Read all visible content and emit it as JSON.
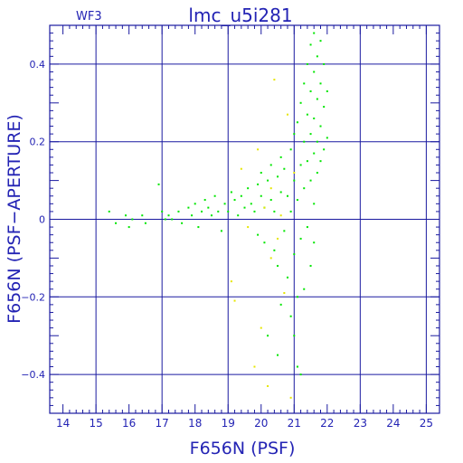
{
  "chart_data": {
    "type": "scatter",
    "title": "lmc_u5i281",
    "corner_label": "WF3",
    "xlabel": "F656N (PSF)",
    "ylabel": "F656N (PSF−APERTURE)",
    "xlim": [
      13.6,
      25.4
    ],
    "ylim": [
      -0.5,
      0.5
    ],
    "x_ticks": [
      14,
      15,
      16,
      17,
      18,
      19,
      20,
      21,
      22,
      23,
      24,
      25
    ],
    "y_ticks": [
      -0.4,
      -0.2,
      0,
      0.2,
      0.4
    ],
    "x_tick_labels": [
      "14",
      "15",
      "16",
      "17",
      "18",
      "19",
      "20",
      "21",
      "22",
      "23",
      "24",
      "25"
    ],
    "y_tick_labels": [
      "−0.4",
      "−0.2",
      "0",
      "0.2",
      "0.4"
    ],
    "grid": true,
    "colors": {
      "frame": "#1a1aa0",
      "text": "#2323b4",
      "series_green": "#00e600",
      "series_yellow": "#e6e600"
    },
    "series": [
      {
        "color": "#00e600",
        "points": [
          [
            15.4,
            0.02
          ],
          [
            15.6,
            -0.01
          ],
          [
            15.9,
            0.01
          ],
          [
            16.0,
            -0.02
          ],
          [
            16.1,
            0.0
          ],
          [
            16.4,
            0.01
          ],
          [
            16.5,
            -0.01
          ],
          [
            16.9,
            0.09
          ],
          [
            17.0,
            0.02
          ],
          [
            17.1,
            0.0
          ],
          [
            17.2,
            0.01
          ],
          [
            17.3,
            0.0
          ],
          [
            17.5,
            0.02
          ],
          [
            17.6,
            -0.01
          ],
          [
            17.8,
            0.03
          ],
          [
            17.9,
            0.01
          ],
          [
            18.0,
            0.04
          ],
          [
            18.1,
            -0.02
          ],
          [
            18.2,
            0.02
          ],
          [
            18.3,
            0.05
          ],
          [
            18.4,
            0.03
          ],
          [
            18.5,
            0.01
          ],
          [
            18.6,
            0.06
          ],
          [
            18.7,
            0.02
          ],
          [
            18.8,
            -0.03
          ],
          [
            18.9,
            0.04
          ],
          [
            19.0,
            0.02
          ],
          [
            19.1,
            0.07
          ],
          [
            19.2,
            0.05
          ],
          [
            19.3,
            0.01
          ],
          [
            19.4,
            0.06
          ],
          [
            19.5,
            0.03
          ],
          [
            19.6,
            0.08
          ],
          [
            19.7,
            0.04
          ],
          [
            19.8,
            0.02
          ],
          [
            19.9,
            0.09
          ],
          [
            19.9,
            -0.04
          ],
          [
            20.0,
            0.06
          ],
          [
            20.0,
            0.12
          ],
          [
            20.1,
            0.03
          ],
          [
            20.1,
            -0.06
          ],
          [
            20.2,
            0.1
          ],
          [
            20.3,
            0.05
          ],
          [
            20.3,
            0.14
          ],
          [
            20.4,
            -0.08
          ],
          [
            20.4,
            0.02
          ],
          [
            20.5,
            0.11
          ],
          [
            20.5,
            -0.12
          ],
          [
            20.6,
            0.07
          ],
          [
            20.6,
            0.16
          ],
          [
            20.7,
            -0.03
          ],
          [
            20.7,
            0.13
          ],
          [
            20.8,
            0.06
          ],
          [
            20.8,
            -0.15
          ],
          [
            20.9,
            0.18
          ],
          [
            20.9,
            0.02
          ],
          [
            21.0,
            0.1
          ],
          [
            21.0,
            -0.09
          ],
          [
            21.0,
            0.22
          ],
          [
            21.1,
            0.25
          ],
          [
            21.1,
            -0.2
          ],
          [
            21.1,
            0.05
          ],
          [
            21.2,
            0.3
          ],
          [
            21.2,
            0.14
          ],
          [
            21.2,
            -0.05
          ],
          [
            21.3,
            0.35
          ],
          [
            21.3,
            0.2
          ],
          [
            21.3,
            0.08
          ],
          [
            21.4,
            0.4
          ],
          [
            21.4,
            0.27
          ],
          [
            21.4,
            0.15
          ],
          [
            21.4,
            -0.02
          ],
          [
            21.5,
            0.45
          ],
          [
            21.5,
            0.33
          ],
          [
            21.5,
            0.22
          ],
          [
            21.5,
            0.1
          ],
          [
            21.6,
            0.48
          ],
          [
            21.6,
            0.38
          ],
          [
            21.6,
            0.26
          ],
          [
            21.6,
            0.17
          ],
          [
            21.6,
            0.04
          ],
          [
            21.7,
            0.42
          ],
          [
            21.7,
            0.31
          ],
          [
            21.7,
            0.2
          ],
          [
            21.7,
            0.12
          ],
          [
            21.8,
            0.46
          ],
          [
            21.8,
            0.35
          ],
          [
            21.8,
            0.24
          ],
          [
            21.8,
            0.15
          ],
          [
            21.9,
            0.4
          ],
          [
            21.9,
            0.29
          ],
          [
            21.9,
            0.18
          ],
          [
            22.0,
            0.33
          ],
          [
            22.0,
            0.21
          ],
          [
            20.9,
            -0.25
          ],
          [
            21.0,
            -0.3
          ],
          [
            21.1,
            -0.38
          ],
          [
            21.2,
            -0.4
          ],
          [
            20.6,
            -0.22
          ],
          [
            20.2,
            -0.3
          ],
          [
            20.5,
            -0.35
          ],
          [
            21.3,
            -0.18
          ],
          [
            21.5,
            -0.12
          ],
          [
            21.6,
            -0.06
          ]
        ]
      },
      {
        "color": "#e6e600",
        "points": [
          [
            19.1,
            -0.16
          ],
          [
            19.2,
            -0.21
          ],
          [
            19.4,
            0.13
          ],
          [
            19.6,
            -0.02
          ],
          [
            19.8,
            -0.38
          ],
          [
            19.9,
            0.18
          ],
          [
            20.0,
            -0.28
          ],
          [
            20.1,
            0.03
          ],
          [
            20.2,
            -0.43
          ],
          [
            20.3,
            0.08
          ],
          [
            20.3,
            -0.1
          ],
          [
            20.4,
            0.36
          ],
          [
            20.5,
            -0.05
          ],
          [
            20.6,
            0.01
          ],
          [
            20.7,
            -0.19
          ],
          [
            20.8,
            0.27
          ],
          [
            20.9,
            -0.46
          ],
          [
            21.0,
            0.12
          ]
        ]
      }
    ]
  }
}
